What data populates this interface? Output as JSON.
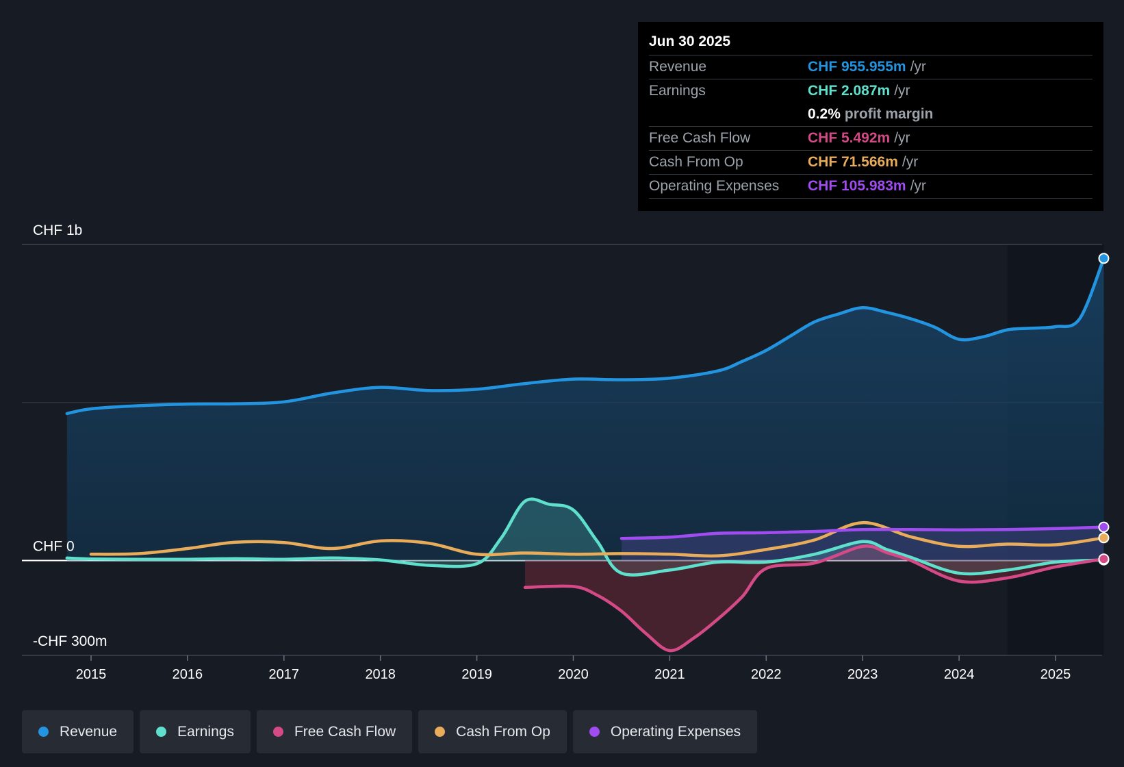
{
  "colors": {
    "revenue": "#2394e0",
    "earnings": "#5fe0cd",
    "fcf": "#d34a86",
    "cfo": "#e8ac5b",
    "opex": "#a04cf0",
    "background": "#161b24"
  },
  "tooltip": {
    "date": "Jun 30 2025",
    "rows": [
      {
        "label": "Revenue",
        "value": "CHF 955.955m",
        "unit": "/yr"
      },
      {
        "label": "Earnings",
        "value": "CHF 2.087m",
        "unit": "/yr"
      },
      {
        "label": "",
        "value": "0.2%",
        "unit": "profit margin"
      },
      {
        "label": "Free Cash Flow",
        "value": "CHF 5.492m",
        "unit": "/yr"
      },
      {
        "label": "Cash From Op",
        "value": "CHF 71.566m",
        "unit": "/yr"
      },
      {
        "label": "Operating Expenses",
        "value": "CHF 105.983m",
        "unit": "/yr"
      }
    ]
  },
  "legend": [
    {
      "label": "Revenue"
    },
    {
      "label": "Earnings"
    },
    {
      "label": "Free Cash Flow"
    },
    {
      "label": "Cash From Op"
    },
    {
      "label": "Operating Expenses"
    }
  ],
  "chart_data": {
    "type": "line",
    "title": "",
    "xlabel": "",
    "ylabel": "",
    "ylim": [
      -300,
      1000
    ],
    "y_ticks": [
      {
        "value": 1000,
        "label": "CHF 1b"
      },
      {
        "value": 0,
        "label": "CHF 0"
      },
      {
        "value": -300,
        "label": "-CHF 300m"
      }
    ],
    "x_ticks": [
      "2015",
      "2016",
      "2017",
      "2018",
      "2019",
      "2020",
      "2021",
      "2022",
      "2023",
      "2024",
      "2025"
    ],
    "xlim": [
      2014.5,
      2025.5
    ],
    "forecast_start": 2024.5,
    "series": [
      {
        "name": "Revenue",
        "key": "revenue",
        "fill": true,
        "points": [
          [
            2014.75,
            465
          ],
          [
            2015,
            480
          ],
          [
            2015.5,
            490
          ],
          [
            2016,
            495
          ],
          [
            2016.5,
            496
          ],
          [
            2017,
            502
          ],
          [
            2017.5,
            530
          ],
          [
            2018,
            548
          ],
          [
            2018.5,
            538
          ],
          [
            2019,
            542
          ],
          [
            2019.5,
            560
          ],
          [
            2020,
            574
          ],
          [
            2020.5,
            572
          ],
          [
            2021,
            577
          ],
          [
            2021.5,
            600
          ],
          [
            2021.75,
            630
          ],
          [
            2022,
            665
          ],
          [
            2022.25,
            710
          ],
          [
            2022.5,
            755
          ],
          [
            2022.75,
            780
          ],
          [
            2023,
            800
          ],
          [
            2023.25,
            785
          ],
          [
            2023.5,
            765
          ],
          [
            2023.75,
            738
          ],
          [
            2024,
            700
          ],
          [
            2024.25,
            708
          ],
          [
            2024.5,
            730
          ],
          [
            2024.75,
            735
          ],
          [
            2025,
            740
          ],
          [
            2025.25,
            765
          ],
          [
            2025.5,
            956
          ]
        ]
      },
      {
        "name": "Earnings",
        "key": "earnings",
        "fill": true,
        "points": [
          [
            2014.75,
            8
          ],
          [
            2015,
            5
          ],
          [
            2015.5,
            4
          ],
          [
            2016,
            4
          ],
          [
            2016.5,
            6
          ],
          [
            2017,
            4
          ],
          [
            2017.5,
            8
          ],
          [
            2018,
            2
          ],
          [
            2018.5,
            -15
          ],
          [
            2019,
            -10
          ],
          [
            2019.25,
            70
          ],
          [
            2019.5,
            188
          ],
          [
            2019.75,
            178
          ],
          [
            2020,
            160
          ],
          [
            2020.25,
            60
          ],
          [
            2020.5,
            -40
          ],
          [
            2021,
            -30
          ],
          [
            2021.5,
            -5
          ],
          [
            2022,
            -5
          ],
          [
            2022.5,
            20
          ],
          [
            2023,
            60
          ],
          [
            2023.25,
            35
          ],
          [
            2023.5,
            10
          ],
          [
            2024,
            -40
          ],
          [
            2024.5,
            -30
          ],
          [
            2025,
            -5
          ],
          [
            2025.5,
            2
          ]
        ]
      },
      {
        "name": "Free Cash Flow",
        "key": "fcf",
        "fill": true,
        "points": [
          [
            2019.5,
            -85
          ],
          [
            2020,
            -82
          ],
          [
            2020.25,
            -110
          ],
          [
            2020.5,
            -160
          ],
          [
            2020.75,
            -230
          ],
          [
            2021,
            -285
          ],
          [
            2021.25,
            -245
          ],
          [
            2021.5,
            -185
          ],
          [
            2021.75,
            -115
          ],
          [
            2022,
            -25
          ],
          [
            2022.5,
            -8
          ],
          [
            2023,
            45
          ],
          [
            2023.25,
            25
          ],
          [
            2023.5,
            0
          ],
          [
            2024,
            -65
          ],
          [
            2024.5,
            -55
          ],
          [
            2025,
            -20
          ],
          [
            2025.5,
            5
          ]
        ]
      },
      {
        "name": "Cash From Op",
        "key": "cfo",
        "fill": false,
        "points": [
          [
            2015,
            20
          ],
          [
            2015.5,
            22
          ],
          [
            2016,
            38
          ],
          [
            2016.5,
            58
          ],
          [
            2017,
            57
          ],
          [
            2017.5,
            38
          ],
          [
            2018,
            62
          ],
          [
            2018.5,
            55
          ],
          [
            2019,
            20
          ],
          [
            2019.5,
            24
          ],
          [
            2020,
            20
          ],
          [
            2020.5,
            22
          ],
          [
            2021,
            20
          ],
          [
            2021.5,
            15
          ],
          [
            2022,
            35
          ],
          [
            2022.5,
            65
          ],
          [
            2023,
            120
          ],
          [
            2023.5,
            75
          ],
          [
            2024,
            45
          ],
          [
            2024.5,
            52
          ],
          [
            2025,
            50
          ],
          [
            2025.5,
            72
          ]
        ]
      },
      {
        "name": "Operating Expenses",
        "key": "opex",
        "fill": true,
        "points": [
          [
            2020.5,
            70
          ],
          [
            2021,
            74
          ],
          [
            2021.5,
            86
          ],
          [
            2022,
            88
          ],
          [
            2022.5,
            92
          ],
          [
            2023,
            98
          ],
          [
            2023.5,
            98
          ],
          [
            2024,
            97
          ],
          [
            2024.5,
            98
          ],
          [
            2025,
            101
          ],
          [
            2025.5,
            106
          ]
        ]
      }
    ]
  }
}
